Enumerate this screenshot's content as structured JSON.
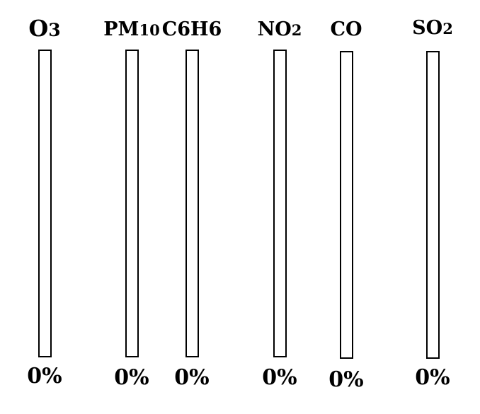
{
  "colors": {
    "background": "#ffffff",
    "outline": "#000000",
    "fill": "#000000"
  },
  "gauges": [
    {
      "label_main": "O",
      "label_sub": "3",
      "value_text": "0%",
      "fraction": 0
    },
    {
      "label_main": "PM",
      "label_sub": "10",
      "value_text": "0%",
      "fraction": 0
    },
    {
      "label_main": "C6H6",
      "label_sub": "",
      "value_text": "0%",
      "fraction": 0
    },
    {
      "label_main": "NO",
      "label_sub": "2",
      "value_text": "0%",
      "fraction": 0
    },
    {
      "label_main": "CO",
      "label_sub": "",
      "value_text": "0%",
      "fraction": 0
    },
    {
      "label_main": "SO",
      "label_sub": "2",
      "value_text": "0%",
      "fraction": 0
    }
  ]
}
